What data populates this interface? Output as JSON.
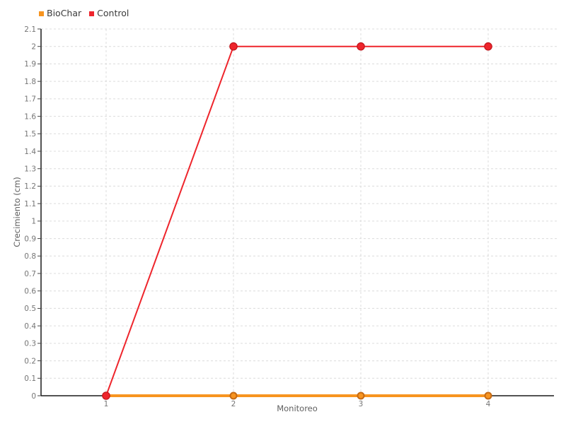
{
  "page": {
    "background": "#ffffff"
  },
  "legend": {
    "items": [
      {
        "label": "BioChar",
        "color": "#F79420"
      },
      {
        "label": "Control",
        "color": "#EE252C"
      }
    ]
  },
  "chart_data": {
    "type": "line",
    "title": "",
    "xlabel": "Monitoreo",
    "ylabel": "Crecimiento (cm)",
    "x": [
      1,
      2,
      3,
      4
    ],
    "x_tick_labels": [
      "1",
      "2",
      "3",
      "4"
    ],
    "ylim": [
      0,
      2.1
    ],
    "y_step": 0.1,
    "y_tick_labels": [
      "0",
      "0.1",
      "0.2",
      "0.3",
      "0.4",
      "0.5",
      "0.6",
      "0.7",
      "0.8",
      "0.9",
      "1",
      "1.1",
      "1.2",
      "1.3",
      "1.4",
      "1.5",
      "1.6",
      "1.7",
      "1.8",
      "1.9",
      "2",
      "2.1"
    ],
    "grid": "dashed",
    "grid_color": "#dcdcdc",
    "axis_color": "#1a1a1a",
    "tick_label_color": "#767676",
    "legend_position": "top-left",
    "series": [
      {
        "name": "BioChar",
        "color": "#F79420",
        "marker_stroke": "#C56A14",
        "marker_radius": 4.5,
        "marker_stroke_width": 2,
        "line_width": 4,
        "values": [
          0,
          0,
          0,
          0
        ]
      },
      {
        "name": "Control",
        "color": "#EE252C",
        "marker_stroke": "#C2151C",
        "marker_radius": 5.2,
        "marker_stroke_width": 1.2,
        "line_width": 2,
        "values": [
          0,
          2,
          2,
          2
        ]
      }
    ]
  }
}
